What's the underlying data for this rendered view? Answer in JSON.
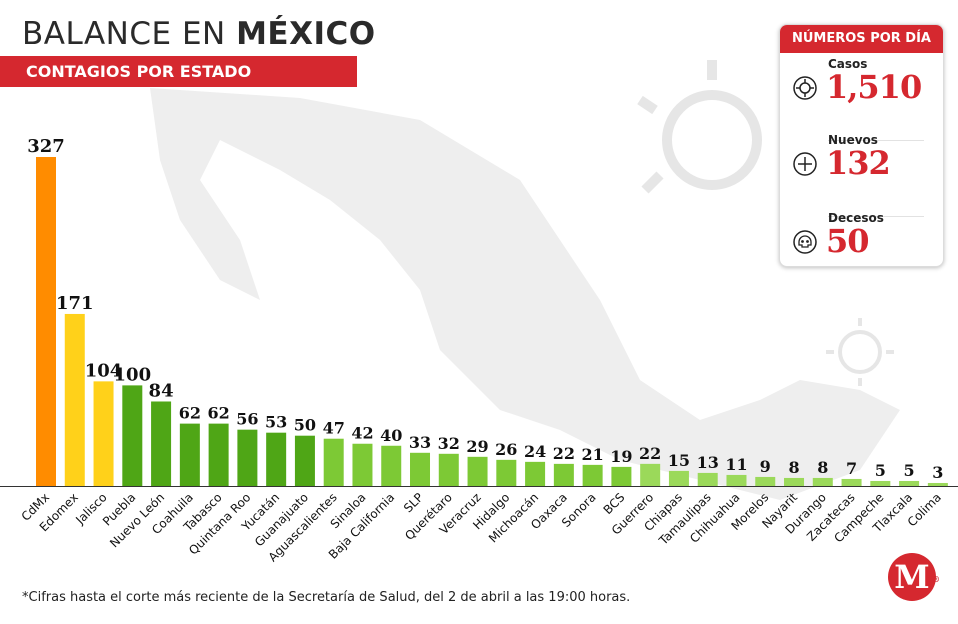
{
  "header": {
    "title_part1": "BALANCE EN ",
    "title_part2": "MÉXICO",
    "subtitle": "CONTAGIOS POR ESTADO"
  },
  "panel": {
    "header": "NÚMEROS POR DÍA",
    "stats": [
      {
        "label": "Casos",
        "value": "1,510",
        "icon": "virus-icon"
      },
      {
        "label": "Nuevos",
        "value": "132",
        "icon": "plus-circle-icon"
      },
      {
        "label": "Decesos",
        "value": "50",
        "icon": "skull-icon"
      }
    ]
  },
  "footnote": "*Cifras hasta el corte más reciente de la Secretaría de Salud, del 2 de abril a las 19:00 horas.",
  "logo": {
    "letter": "M",
    "mark": "®"
  },
  "colors": {
    "accent": "#d5282f",
    "orange": "#ff8c00",
    "yellow": "#ffd11a",
    "dark_green": "#4fa616",
    "mid_green": "#7dc935",
    "light_green": "#9bd95a",
    "map": "#eeeeee"
  },
  "chart_data": {
    "type": "bar",
    "title": "",
    "xlabel": "",
    "ylabel": "",
    "ylim": [
      0,
      330
    ],
    "grid": false,
    "categories": [
      "CdMx",
      "Edomex",
      "Jalisco",
      "Puebla",
      "Nuevo León",
      "Coahuila",
      "Tabasco",
      "Quintana Roo",
      "Yucatán",
      "Guanajuato",
      "Aguascalientes",
      "Sinaloa",
      "Baja California",
      "SLP",
      "Querétaro",
      "Veracruz",
      "Hidalgo",
      "Michoacán",
      "Oaxaca",
      "Sonora",
      "BCS",
      "Guerrero",
      "Chiapas",
      "Tamaulipas",
      "Chihuahua",
      "Morelos",
      "Nayarit",
      "Durango",
      "Zacatecas",
      "Campeche",
      "Tlaxcala",
      "Colima"
    ],
    "values": [
      327,
      171,
      104,
      100,
      84,
      62,
      62,
      56,
      53,
      50,
      47,
      42,
      40,
      33,
      32,
      29,
      26,
      24,
      22,
      21,
      19,
      22,
      15,
      13,
      11,
      9,
      8,
      8,
      7,
      5,
      5,
      3
    ]
  }
}
